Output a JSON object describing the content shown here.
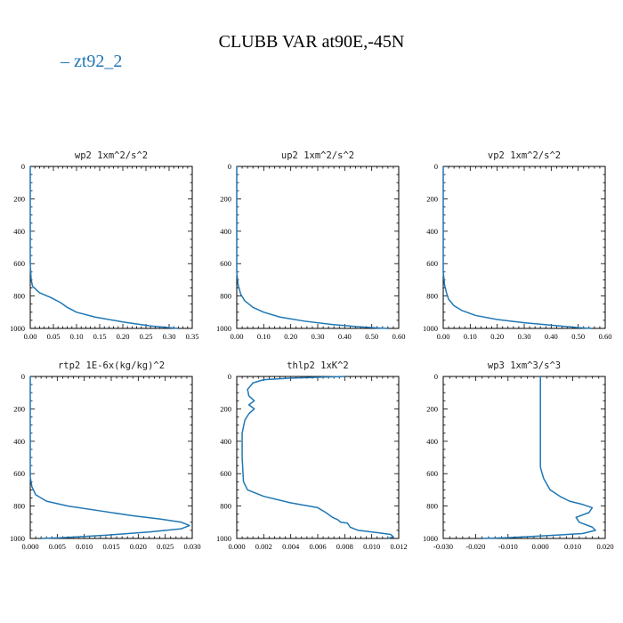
{
  "title": "CLUBB VAR at90E,-45N",
  "legend": {
    "label": "zt92_2",
    "color": "#1f77b4"
  },
  "chart_data": [
    {
      "type": "line",
      "title": "wp2   1xm^2/s^2",
      "xlim": [
        0,
        0.35
      ],
      "ylim": [
        1000,
        0
      ],
      "xticks": [
        0,
        0.05,
        0.1,
        0.15,
        0.2,
        0.25,
        0.3,
        0.35
      ],
      "xtick_labels": [
        "0.00",
        "0.05",
        "0.10",
        "0.15",
        "0.20",
        "0.25",
        "0.30",
        "0.35"
      ],
      "yticks": [
        0,
        200,
        400,
        600,
        800,
        1000
      ],
      "ytick_labels": [
        "0",
        "200",
        "400",
        "600",
        "800",
        "1000"
      ],
      "series": [
        {
          "x": [
            0,
            0,
            0.002,
            0.005,
            0.02,
            0.045,
            0.065,
            0.08,
            0.1,
            0.14,
            0.2,
            0.26,
            0.3,
            0.32
          ],
          "y": [
            0,
            600,
            700,
            740,
            780,
            810,
            840,
            870,
            900,
            930,
            960,
            985,
            995,
            1000
          ]
        }
      ]
    },
    {
      "type": "line",
      "title": "up2   1xm^2/s^2",
      "xlim": [
        0,
        0.6
      ],
      "ylim": [
        1000,
        0
      ],
      "xticks": [
        0,
        0.1,
        0.2,
        0.3,
        0.4,
        0.5,
        0.6
      ],
      "xtick_labels": [
        "0.00",
        "0.10",
        "0.20",
        "0.30",
        "0.40",
        "0.50",
        "0.60"
      ],
      "yticks": [
        0,
        200,
        400,
        600,
        800,
        1000
      ],
      "ytick_labels": [
        "0",
        "200",
        "400",
        "600",
        "800",
        "1000"
      ],
      "series": [
        {
          "x": [
            0,
            0,
            0.005,
            0.015,
            0.03,
            0.06,
            0.1,
            0.16,
            0.25,
            0.35,
            0.45,
            0.53,
            0.56
          ],
          "y": [
            0,
            650,
            730,
            790,
            830,
            870,
            900,
            930,
            955,
            975,
            990,
            998,
            1000
          ]
        }
      ]
    },
    {
      "type": "line",
      "title": "vp2   1xm^2/s^2",
      "xlim": [
        0,
        0.6
      ],
      "ylim": [
        1000,
        0
      ],
      "xticks": [
        0,
        0.1,
        0.2,
        0.3,
        0.4,
        0.5,
        0.6
      ],
      "xtick_labels": [
        "0.00",
        "0.10",
        "0.20",
        "0.30",
        "0.40",
        "0.50",
        "0.60"
      ],
      "yticks": [
        0,
        200,
        400,
        600,
        800,
        1000
      ],
      "ytick_labels": [
        "0",
        "200",
        "400",
        "600",
        "800",
        "1000"
      ],
      "series": [
        {
          "x": [
            0,
            0,
            0.005,
            0.012,
            0.02,
            0.04,
            0.07,
            0.12,
            0.2,
            0.3,
            0.4,
            0.5,
            0.55
          ],
          "y": [
            0,
            650,
            730,
            780,
            820,
            860,
            890,
            920,
            945,
            965,
            980,
            995,
            1000
          ]
        }
      ]
    },
    {
      "type": "line",
      "title": "rtp2   1E-6x(kg/kg)^2",
      "xlim": [
        0,
        0.03
      ],
      "ylim": [
        1000,
        0
      ],
      "xticks": [
        0,
        0.005,
        0.01,
        0.015,
        0.02,
        0.025,
        0.03
      ],
      "xtick_labels": [
        "0.000",
        "0.005",
        "0.010",
        "0.015",
        "0.020",
        "0.025",
        "0.030"
      ],
      "yticks": [
        0,
        200,
        400,
        600,
        800,
        1000
      ],
      "ytick_labels": [
        "0",
        "200",
        "400",
        "600",
        "800",
        "1000"
      ],
      "series": [
        {
          "x": [
            0,
            0,
            0.0003,
            0.001,
            0.003,
            0.007,
            0.013,
            0.019,
            0.024,
            0.028,
            0.0295,
            0.028,
            0.022,
            0.014,
            0.006,
            0.002
          ],
          "y": [
            0,
            620,
            680,
            730,
            770,
            800,
            830,
            860,
            880,
            900,
            920,
            940,
            960,
            980,
            995,
            1000
          ]
        }
      ]
    },
    {
      "type": "line",
      "title": "thlp2   1xK^2",
      "xlim": [
        0,
        0.012
      ],
      "ylim": [
        1000,
        0
      ],
      "xticks": [
        0,
        0.002,
        0.004,
        0.006,
        0.008,
        0.01,
        0.012
      ],
      "xtick_labels": [
        "0.000",
        "0.002",
        "0.004",
        "0.006",
        "0.008",
        "0.010",
        "0.012"
      ],
      "yticks": [
        0,
        200,
        400,
        600,
        800,
        1000
      ],
      "ytick_labels": [
        "0",
        "200",
        "400",
        "600",
        "800",
        "1000"
      ],
      "series": [
        {
          "x": [
            0.008,
            0.004,
            0.002,
            0.0012,
            0.0008,
            0.0009,
            0.0013,
            0.0009,
            0.0013,
            0.0009,
            0.0006,
            0.0004,
            0.0004,
            0.0005,
            0.0008,
            0.002,
            0.004,
            0.006,
            0.0066,
            0.0071,
            0.0075,
            0.0077,
            0.0082,
            0.0084,
            0.009,
            0.0105,
            0.0114,
            0.0116,
            0.0112
          ],
          "y": [
            0,
            10,
            20,
            40,
            80,
            120,
            150,
            175,
            200,
            230,
            270,
            350,
            500,
            650,
            700,
            740,
            780,
            810,
            840,
            870,
            885,
            900,
            905,
            930,
            950,
            965,
            975,
            990,
            1000
          ]
        }
      ]
    },
    {
      "type": "line",
      "title": "wp3   1xm^3/s^3",
      "xlim": [
        -0.03,
        0.02
      ],
      "ylim": [
        1000,
        0
      ],
      "xticks": [
        -0.03,
        -0.02,
        -0.01,
        0,
        0.01,
        0.02
      ],
      "xtick_labels": [
        "-0.030",
        "-0.020",
        "-0.010",
        "0.000",
        "0.010",
        "0.020"
      ],
      "yticks": [
        0,
        200,
        400,
        600,
        800,
        1000
      ],
      "ytick_labels": [
        "0",
        "200",
        "400",
        "600",
        "800",
        "1000"
      ],
      "series": [
        {
          "x": [
            0,
            0,
            0.001,
            0.003,
            0.006,
            0.009,
            0.013,
            0.016,
            0.015,
            0.011,
            0.012,
            0.016,
            0.017,
            0.013,
            0.0,
            -0.01,
            -0.018
          ],
          "y": [
            0,
            560,
            630,
            700,
            740,
            770,
            790,
            810,
            840,
            870,
            900,
            930,
            950,
            970,
            985,
            995,
            1000
          ]
        }
      ]
    }
  ]
}
